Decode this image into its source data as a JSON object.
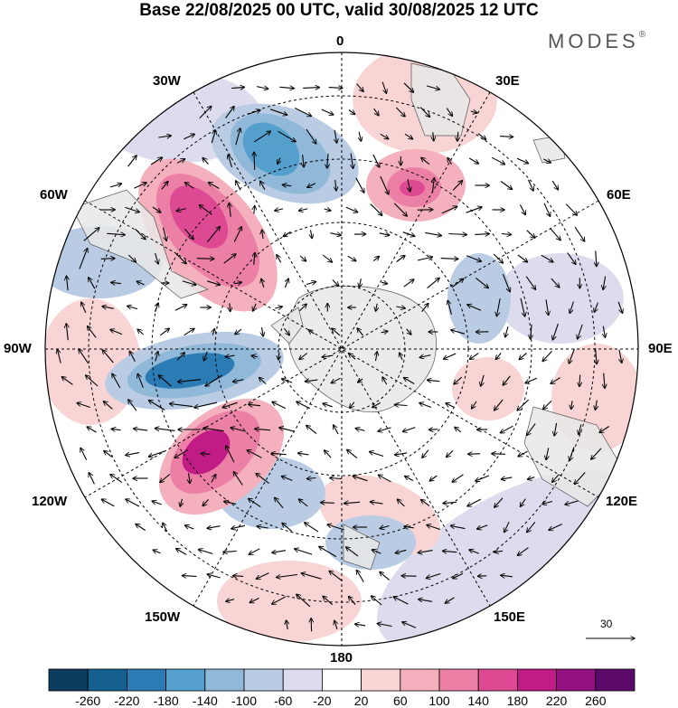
{
  "title": "Base 22/08/2025 00 UTC, valid 30/08/2025 12 UTC",
  "brand": "MODES",
  "brand_mark": "®",
  "longitude_labels": {
    "lon_0": "0",
    "lon_30e": "30E",
    "lon_60e": "60E",
    "lon_90e": "90E",
    "lon_120e": "120E",
    "lon_150e": "150E",
    "lon_180": "180",
    "lon_150w": "150W",
    "lon_120w": "120W",
    "lon_90w": "90W",
    "lon_60w": "60W",
    "lon_30w": "30W"
  },
  "reference_vector": "30",
  "colorbar": {
    "ticks": [
      "-260",
      "-220",
      "-180",
      "-140",
      "-100",
      "-60",
      "-20",
      "20",
      "60",
      "100",
      "140",
      "180",
      "220",
      "260"
    ],
    "colors": [
      "#0c3d5e",
      "#16608f",
      "#2b7cb5",
      "#559fcc",
      "#8fb8d9",
      "#b9cce4",
      "#dcdcee",
      "#ffffff",
      "#f9d4d4",
      "#f4b0bc",
      "#ec7fa6",
      "#dd4a93",
      "#c11c86",
      "#92117e",
      "#5c0a6a"
    ]
  }
}
